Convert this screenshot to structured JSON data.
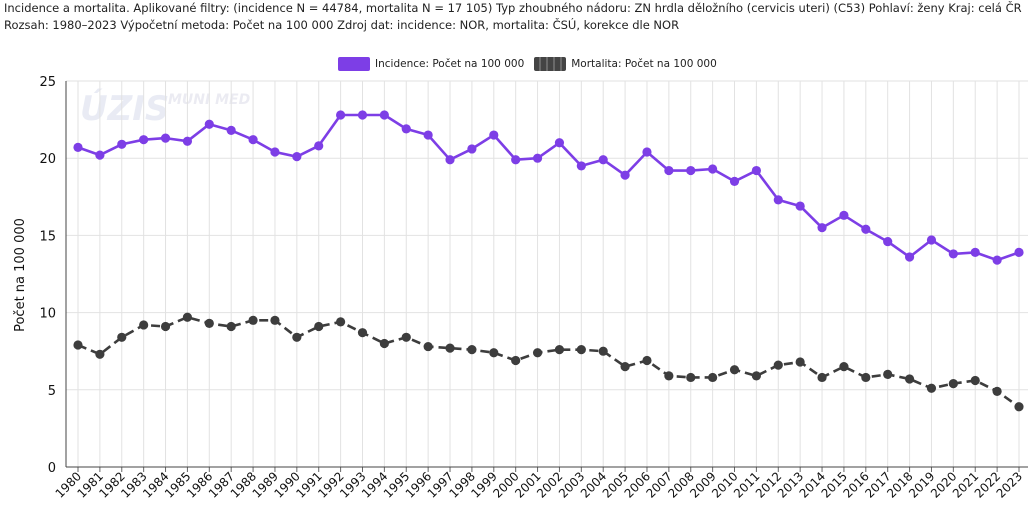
{
  "header": {
    "line1": "Incidence a mortalita. Aplikované filtry: (incidence N = 44784, mortalita N = 17 105) Typ zhoubného nádoru: ZN hrdla děložního (cervicis uteri) (C53) Pohlaví: ženy Kraj: celá ČR",
    "line2": "Rozsah: 1980–2023 Výpočetní metoda: Počet na 100 000 Zdroj dat: incidence: NOR, mortalita: ČSÚ, korekce dle NOR"
  },
  "watermark": {
    "left": "ÚZIS",
    "right": "MUNI MED"
  },
  "colors": {
    "incidence": "#7d3ee6",
    "mortality": "#3d3d3d",
    "grid": "#e2e2e2"
  },
  "chart_data": {
    "type": "line",
    "title": "Incidence a mortalita",
    "xlabel": "",
    "ylabel": "Počet na 100 000",
    "ylim": [
      0,
      25
    ],
    "yticks": [
      0,
      5,
      10,
      15,
      20,
      25
    ],
    "grid": true,
    "legend_position": "top-center",
    "categories": [
      "1980",
      "1981",
      "1982",
      "1983",
      "1984",
      "1985",
      "1986",
      "1987",
      "1988",
      "1989",
      "1990",
      "1991",
      "1992",
      "1993",
      "1994",
      "1995",
      "1996",
      "1997",
      "1998",
      "1999",
      "2000",
      "2001",
      "2002",
      "2003",
      "2004",
      "2005",
      "2006",
      "2007",
      "2008",
      "2009",
      "2010",
      "2011",
      "2012",
      "2013",
      "2014",
      "2015",
      "2016",
      "2017",
      "2018",
      "2019",
      "2020",
      "2021",
      "2022",
      "2023"
    ],
    "series": [
      {
        "name": "Incidence: Počet na 100 000",
        "style": "solid",
        "values": [
          20.7,
          20.2,
          20.9,
          21.2,
          21.3,
          21.1,
          22.2,
          21.8,
          21.2,
          20.4,
          20.1,
          20.8,
          22.8,
          22.8,
          22.8,
          21.9,
          21.5,
          19.9,
          20.6,
          21.5,
          19.9,
          20.0,
          21.0,
          19.5,
          19.9,
          18.9,
          20.4,
          19.2,
          19.2,
          19.3,
          18.5,
          19.2,
          17.3,
          16.9,
          15.5,
          16.3,
          15.4,
          14.6,
          13.6,
          14.7,
          13.8,
          13.9,
          13.4,
          13.9
        ]
      },
      {
        "name": "Mortalita: Počet na 100 000",
        "style": "dashed",
        "values": [
          7.9,
          7.3,
          8.4,
          9.2,
          9.1,
          9.7,
          9.3,
          9.1,
          9.5,
          9.5,
          8.4,
          9.1,
          9.4,
          8.7,
          8.0,
          8.4,
          7.8,
          7.7,
          7.6,
          7.4,
          6.9,
          7.4,
          7.6,
          7.6,
          7.5,
          6.5,
          6.9,
          5.9,
          5.8,
          5.8,
          6.3,
          5.9,
          6.6,
          6.8,
          5.8,
          6.5,
          5.8,
          6.0,
          5.7,
          5.1,
          5.4,
          5.6,
          4.9,
          3.9
        ]
      }
    ]
  }
}
